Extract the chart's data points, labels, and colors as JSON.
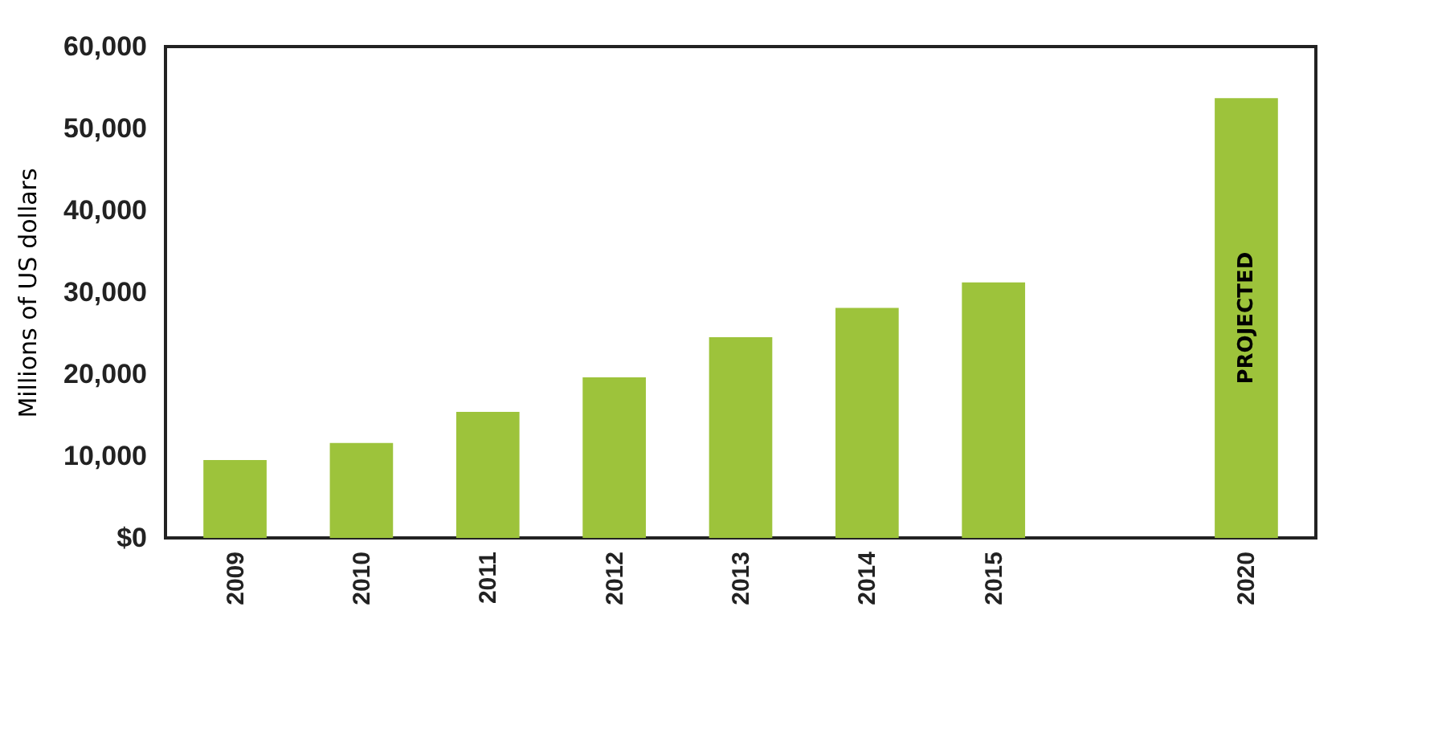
{
  "chart_data": {
    "type": "bar",
    "ylabel": "Millions of US dollars",
    "categories": [
      "2009",
      "2010",
      "2011",
      "2012",
      "2013",
      "2014",
      "2015",
      null,
      "2020"
    ],
    "values": [
      9500,
      11600,
      15400,
      19600,
      24500,
      28100,
      31200,
      null,
      53700
    ],
    "color": "#9dc33b",
    "ylim": [
      0,
      60000
    ],
    "yticks": [
      {
        "value": 0,
        "label": "$0"
      },
      {
        "value": 10000,
        "label": "10,000"
      },
      {
        "value": 20000,
        "label": "20,000"
      },
      {
        "value": 30000,
        "label": "30,000"
      },
      {
        "value": 40000,
        "label": "40,000"
      },
      {
        "value": 50000,
        "label": "50,000"
      },
      {
        "value": 60000,
        "label": "60,000"
      }
    ],
    "annotations": [
      "PROJECTED"
    ],
    "grid": false
  }
}
